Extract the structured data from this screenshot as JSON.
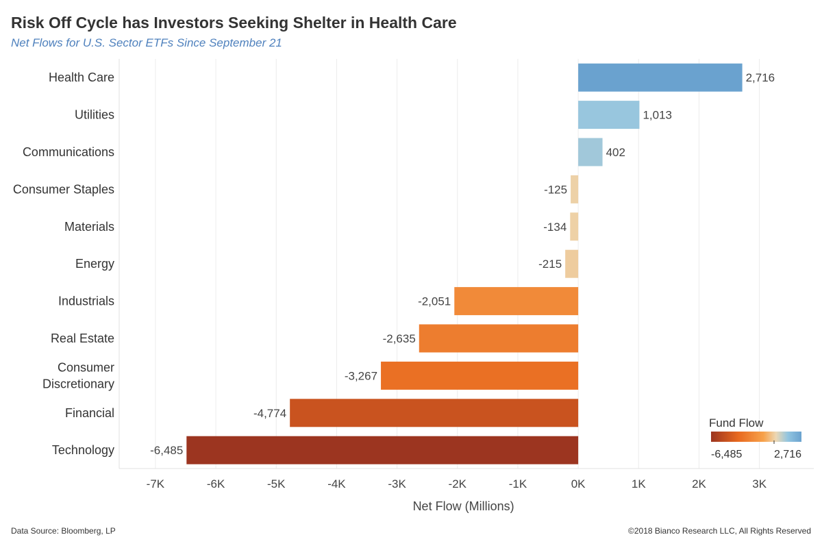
{
  "header": {
    "title": "Risk Off Cycle has Investors Seeking Shelter in Health Care",
    "subtitle": "Net Flows for U.S. Sector ETFs Since September 21"
  },
  "footer": {
    "source": "Data Source: Bloomberg, LP",
    "copyright": "©2018 Bianco Research LLC, All Rights Reserved"
  },
  "chart_data": {
    "type": "bar",
    "orientation": "horizontal",
    "categories": [
      [
        "Health Care"
      ],
      [
        "Utilities"
      ],
      [
        "Communications"
      ],
      [
        "Consumer Staples"
      ],
      [
        "Materials"
      ],
      [
        "Energy"
      ],
      [
        "Industrials"
      ],
      [
        "Real Estate"
      ],
      [
        "Consumer",
        "Discretionary"
      ],
      [
        "Financial"
      ],
      [
        "Technology"
      ]
    ],
    "values": [
      2716,
      1013,
      402,
      -125,
      -134,
      -215,
      -2051,
      -2635,
      -3267,
      -4774,
      -6485
    ],
    "value_labels": [
      "2,716",
      "1,013",
      "402",
      "-125",
      "-134",
      "-215",
      "-2,051",
      "-2,635",
      "-3,267",
      "-4,774",
      "-6,485"
    ],
    "xlabel": "Net Flow (Millions)",
    "xlim": [
      -7600,
      3900
    ],
    "xticks": [
      -7000,
      -6000,
      -5000,
      -4000,
      -3000,
      -2000,
      -1000,
      0,
      1000,
      2000,
      3000
    ],
    "xtick_labels": [
      "-7K",
      "-6K",
      "-5K",
      "-4K",
      "-3K",
      "-2K",
      "-1K",
      "0K",
      "1K",
      "2K",
      "3K"
    ],
    "grid": "vertical",
    "legend": {
      "title": "Fund Flow",
      "placement": "bottom-right",
      "min_label": "-6,485",
      "max_label": "2,716",
      "min_value": -6485,
      "max_value": 2716
    },
    "colors": {
      "neg_deep": "#9c3520",
      "neg_mid": "#e8691f",
      "neg_light": "#f7a24b",
      "neutral": "#ecd8b5",
      "pos_light": "#a8c9d8",
      "pos_mid": "#92c5e0",
      "pos_deep": "#6aa2cf"
    }
  }
}
